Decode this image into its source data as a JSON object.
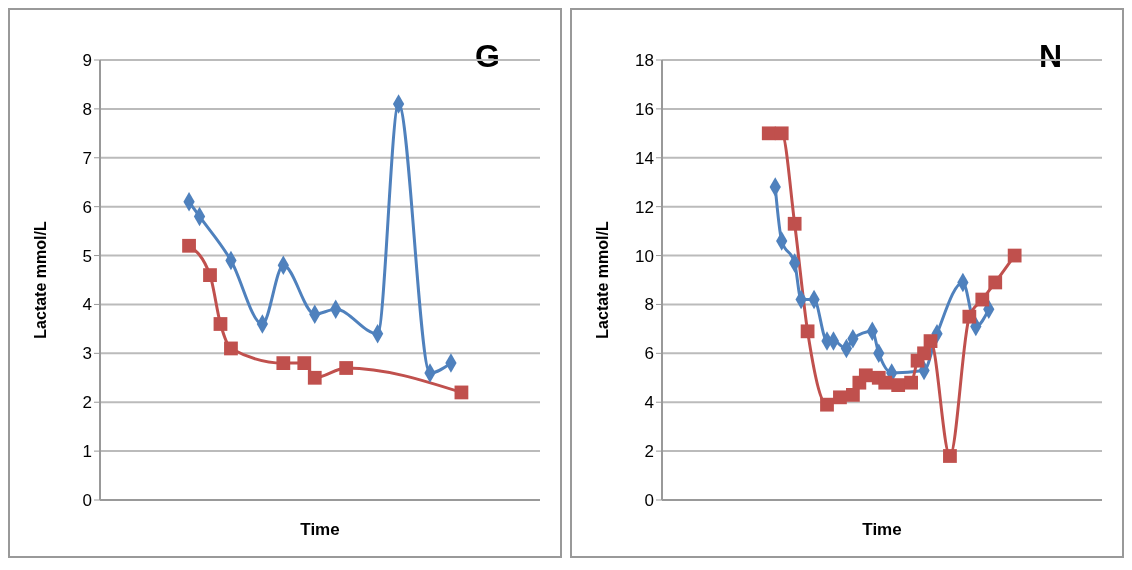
{
  "chart_data": [
    {
      "type": "line",
      "xlabel": "Time",
      "ylabel": "Lactate mmol/L",
      "annotations": [
        "G"
      ],
      "categories": [
        null,
        null,
        null,
        null,
        null,
        null,
        null,
        null,
        null,
        null,
        null,
        null,
        null,
        null,
        null,
        null,
        null,
        null,
        null,
        null,
        null,
        null,
        null,
        null,
        null,
        null,
        null,
        null,
        null,
        null,
        null,
        null,
        null,
        null,
        null,
        null,
        null,
        null,
        null,
        null,
        null,
        null
      ],
      "ylim": [
        0,
        9
      ],
      "yticks": [
        0,
        1,
        2,
        3,
        4,
        5,
        6,
        7,
        8,
        9
      ],
      "grid": "y",
      "legend": false,
      "line_style": "solid",
      "series": [
        {
          "color": "#4f81bd",
          "marker": "diamond",
          "values": [
            null,
            null,
            null,
            null,
            null,
            null,
            null,
            null,
            6.1,
            5.8,
            null,
            null,
            4.9,
            null,
            null,
            3.6,
            null,
            4.8,
            null,
            null,
            3.8,
            null,
            3.9,
            null,
            null,
            null,
            3.4,
            null,
            8.1,
            null,
            null,
            2.6,
            null,
            2.8,
            null,
            null,
            null,
            null,
            null,
            null,
            null,
            null
          ]
        },
        {
          "color": "#c0504d",
          "marker": "square",
          "values": [
            null,
            null,
            null,
            null,
            null,
            null,
            null,
            null,
            5.2,
            null,
            4.6,
            3.6,
            3.1,
            null,
            null,
            null,
            null,
            2.8,
            null,
            2.8,
            2.5,
            null,
            null,
            2.7,
            null,
            null,
            null,
            null,
            null,
            null,
            null,
            null,
            null,
            null,
            2.2,
            null,
            null,
            null,
            null,
            null,
            null,
            null
          ]
        }
      ]
    },
    {
      "type": "line",
      "xlabel": "Time",
      "ylabel": "Lactate mmol/L",
      "annotations": [
        "N"
      ],
      "categories": [
        null,
        null,
        null,
        null,
        null,
        null,
        null,
        null,
        null,
        null,
        null,
        null,
        null,
        null,
        null,
        null,
        null,
        null,
        null,
        null,
        null,
        null,
        null,
        null,
        null,
        null,
        null,
        null,
        null,
        null,
        null,
        null,
        null,
        null,
        null,
        null,
        null,
        null,
        null,
        null,
        null,
        null,
        null,
        null,
        null,
        null,
        null,
        null,
        null,
        null,
        null,
        null,
        null,
        null,
        null,
        null,
        null,
        null,
        null,
        null,
        null,
        null,
        null,
        null,
        null,
        null,
        null,
        null
      ],
      "ylim": [
        0,
        18
      ],
      "yticks": [
        0,
        2,
        4,
        6,
        8,
        10,
        12,
        14,
        16,
        18
      ],
      "grid": "y",
      "legend": false,
      "line_style": "solid",
      "series": [
        {
          "color": "#4f81bd",
          "marker": "diamond",
          "values": [
            null,
            null,
            null,
            null,
            null,
            null,
            null,
            null,
            null,
            null,
            null,
            null,
            null,
            null,
            null,
            null,
            null,
            12.8,
            10.6,
            null,
            9.7,
            8.2,
            null,
            8.2,
            null,
            6.5,
            6.5,
            null,
            6.2,
            6.6,
            null,
            null,
            6.9,
            6.0,
            null,
            5.2,
            null,
            null,
            null,
            null,
            5.3,
            null,
            6.8,
            null,
            null,
            null,
            8.9,
            null,
            7.1,
            null,
            7.8,
            null,
            null,
            null,
            null,
            null,
            null,
            null,
            null,
            null,
            null,
            null,
            null,
            null,
            null,
            null,
            null,
            null
          ]
        },
        {
          "color": "#c0504d",
          "marker": "square",
          "values": [
            null,
            null,
            null,
            null,
            null,
            null,
            null,
            null,
            null,
            null,
            null,
            null,
            null,
            null,
            null,
            null,
            15.0,
            null,
            15.0,
            null,
            11.3,
            null,
            6.9,
            null,
            null,
            3.9,
            null,
            4.2,
            null,
            4.3,
            4.8,
            5.1,
            null,
            5.0,
            4.8,
            null,
            4.7,
            null,
            4.8,
            5.7,
            6.0,
            6.5,
            null,
            null,
            1.8,
            null,
            null,
            7.5,
            null,
            8.2,
            null,
            8.9,
            null,
            null,
            10.0,
            null,
            null,
            null,
            null,
            null,
            null,
            null,
            null,
            null,
            null,
            null,
            null,
            null
          ]
        }
      ]
    }
  ]
}
